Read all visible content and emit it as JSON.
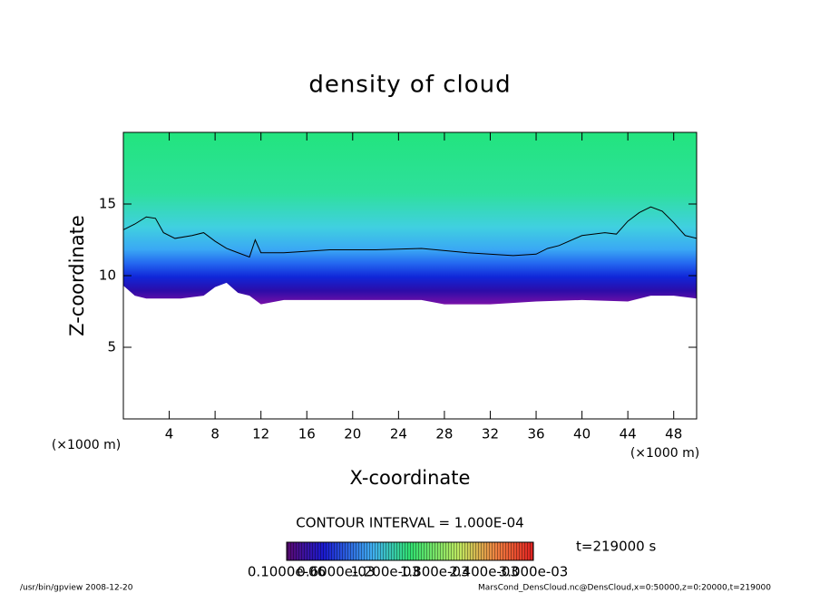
{
  "chart_data": {
    "type": "contour",
    "title": "density of cloud",
    "x_label": "X-coordinate",
    "y_label": "Z-coordinate",
    "x_unit": "(×1000 m)",
    "y_unit": "(×1000 m)",
    "xlim": [
      0,
      50
    ],
    "xticks": [
      4,
      8,
      12,
      16,
      20,
      24,
      28,
      32,
      36,
      40,
      44,
      48
    ],
    "ylim": [
      0,
      20
    ],
    "yticks": [
      5,
      10,
      15
    ],
    "contour": {
      "x": [
        0,
        1,
        2,
        2.8,
        3.5,
        4.5,
        6,
        7,
        8,
        9,
        10,
        11,
        11.5,
        12,
        14,
        18,
        22,
        26,
        30,
        34,
        36,
        37,
        38,
        40,
        42,
        43,
        44,
        45,
        46,
        47,
        48,
        49,
        50
      ],
      "z": [
        13.2,
        13.6,
        14.1,
        14.0,
        13.0,
        12.6,
        12.8,
        13.0,
        12.4,
        11.9,
        11.6,
        11.3,
        12.5,
        11.6,
        11.6,
        11.8,
        11.8,
        11.9,
        11.6,
        11.4,
        11.5,
        11.9,
        12.1,
        12.8,
        13.0,
        12.9,
        13.8,
        14.4,
        14.8,
        14.5,
        13.7,
        12.8,
        12.6
      ]
    },
    "cloud_base": {
      "x": [
        0,
        1,
        2,
        5,
        7,
        8,
        9,
        10,
        11,
        12,
        14,
        20,
        26,
        28,
        32,
        36,
        40,
        44,
        46,
        48,
        50
      ],
      "z": [
        9.3,
        8.6,
        8.4,
        8.4,
        8.6,
        9.2,
        9.5,
        8.8,
        8.6,
        8.0,
        8.3,
        8.3,
        8.3,
        8.0,
        8.0,
        8.2,
        8.3,
        8.2,
        8.6,
        8.6,
        8.4
      ]
    },
    "contour_interval": "CONTOUR INTERVAL = 1.000E-04",
    "time_label": "t=219000 s",
    "colorbar_labels": [
      "0.1000e-06",
      "0.6000e-03",
      "1.200e-03",
      "1.800e-03",
      "2.400e-03",
      "3.000e-03"
    ],
    "footer_left": "/usr/bin/gpview   2008-12-20",
    "footer_right": "MarsCond_DensCloud.nc@DensCloud,x=0:50000,z=0:20000,t=219000"
  }
}
